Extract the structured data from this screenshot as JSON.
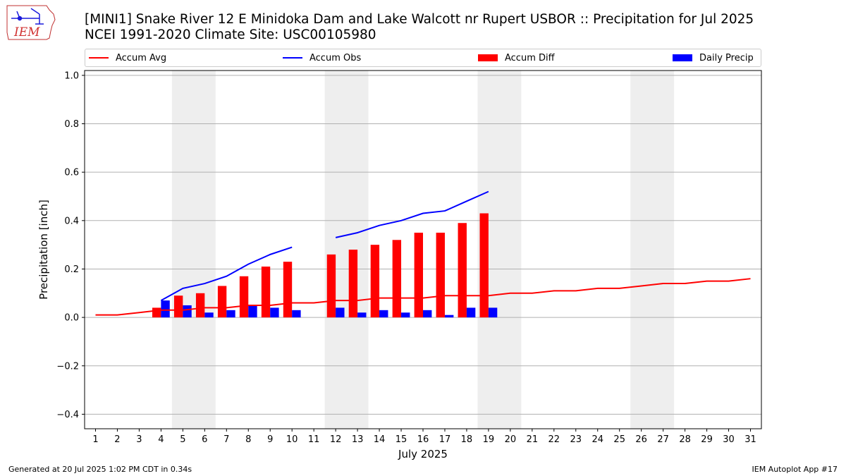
{
  "title_line1": "[MINI1] Snake River 12 E Minidoka Dam and Lake Walcott nr Rupert  USBOR :: Precipitation for Jul 2025",
  "title_line2": "NCEI 1991-2020 Climate Site: USC00105980",
  "logo_text": "IEM",
  "footer_left": "Generated at 20 Jul 2025 1:02 PM CDT in 0.34s",
  "footer_right": "IEM Autoplot App #17",
  "legend": [
    {
      "label": "Accum Avg",
      "kind": "line",
      "color": "#ff0000"
    },
    {
      "label": "Accum Obs",
      "kind": "line",
      "color": "#0000ff"
    },
    {
      "label": "Accum Diff",
      "kind": "bar",
      "color": "#ff0000"
    },
    {
      "label": "Daily Precip",
      "kind": "bar",
      "color": "#0000ff"
    }
  ],
  "chart_data": {
    "type": "bar",
    "xlabel": "July 2025",
    "ylabel": "Precipitation [inch]",
    "xlim": [
      0.5,
      31.5
    ],
    "ylim": [
      -0.46,
      1.02
    ],
    "yticks": [
      -0.4,
      -0.2,
      0.0,
      0.2,
      0.4,
      0.6,
      0.8,
      1.0
    ],
    "ytick_labels": [
      "−0.4",
      "−0.2",
      "0.0",
      "0.2",
      "0.4",
      "0.6",
      "0.8",
      "1.0"
    ],
    "xticks": [
      1,
      2,
      3,
      4,
      5,
      6,
      7,
      8,
      9,
      10,
      11,
      12,
      13,
      14,
      15,
      16,
      17,
      18,
      19,
      20,
      21,
      22,
      23,
      24,
      25,
      26,
      27,
      28,
      29,
      30,
      31
    ],
    "grid": "horizontal",
    "weekend_shading": [
      [
        5,
        6
      ],
      [
        12,
        13
      ],
      [
        19,
        20
      ],
      [
        26,
        27
      ]
    ],
    "weekend_color": "#eeeeee",
    "accum_avg": {
      "name": "Accum Avg",
      "color": "#ff0000",
      "x": [
        1,
        2,
        3,
        4,
        5,
        6,
        7,
        8,
        9,
        10,
        11,
        12,
        13,
        14,
        15,
        16,
        17,
        18,
        19,
        20,
        21,
        22,
        23,
        24,
        25,
        26,
        27,
        28,
        29,
        30,
        31
      ],
      "y": [
        0.01,
        0.01,
        0.02,
        0.03,
        0.03,
        0.04,
        0.04,
        0.05,
        0.05,
        0.06,
        0.06,
        0.07,
        0.07,
        0.08,
        0.08,
        0.08,
        0.09,
        0.09,
        0.09,
        0.1,
        0.1,
        0.11,
        0.11,
        0.12,
        0.12,
        0.13,
        0.14,
        0.14,
        0.15,
        0.15,
        0.16
      ]
    },
    "accum_obs": {
      "name": "Accum Obs",
      "color": "#0000ff",
      "segments": [
        {
          "x": [
            4,
            5,
            6,
            7,
            8,
            9,
            10
          ],
          "y": [
            0.07,
            0.12,
            0.14,
            0.17,
            0.22,
            0.26,
            0.29
          ]
        },
        {
          "x": [
            12,
            13,
            14,
            15,
            16,
            17,
            18,
            19
          ],
          "y": [
            0.33,
            0.35,
            0.38,
            0.4,
            0.43,
            0.44,
            0.48,
            0.52
          ]
        }
      ]
    },
    "accum_diff": {
      "name": "Accum Diff",
      "color": "#ff0000",
      "x": [
        4,
        5,
        6,
        7,
        8,
        9,
        10,
        12,
        13,
        14,
        15,
        16,
        17,
        18,
        19
      ],
      "y": [
        0.04,
        0.09,
        0.1,
        0.13,
        0.17,
        0.21,
        0.23,
        0.26,
        0.28,
        0.3,
        0.32,
        0.35,
        0.35,
        0.39,
        0.43
      ]
    },
    "daily_precip": {
      "name": "Daily Precip",
      "color": "#0000ff",
      "x": [
        4,
        5,
        6,
        7,
        8,
        9,
        10,
        12,
        13,
        14,
        15,
        16,
        17,
        18,
        19
      ],
      "y": [
        0.07,
        0.05,
        0.02,
        0.03,
        0.05,
        0.04,
        0.03,
        0.04,
        0.02,
        0.03,
        0.02,
        0.03,
        0.01,
        0.04,
        0.04
      ]
    }
  }
}
